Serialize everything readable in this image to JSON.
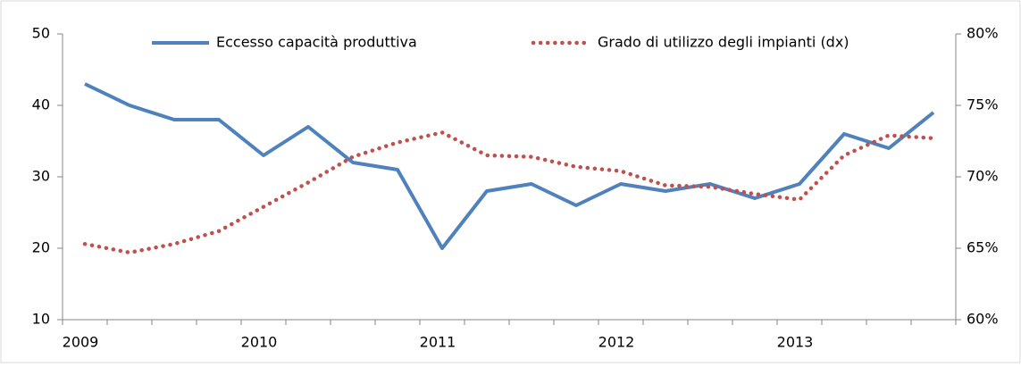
{
  "chart_data": {
    "type": "line",
    "categories": [
      "2009",
      null,
      null,
      null,
      "2010",
      null,
      null,
      null,
      "2011",
      null,
      null,
      null,
      "2012",
      null,
      null,
      null,
      "2013",
      null,
      null,
      null
    ],
    "series": [
      {
        "name": "Eccesso capacità produttiva",
        "color": "#4f81bd",
        "style": "solid",
        "values": [
          43,
          40,
          38,
          38,
          33,
          37,
          32,
          31,
          20,
          28,
          29,
          26,
          29,
          28,
          29,
          27,
          29,
          36,
          34,
          39
        ]
      },
      {
        "name": "Grado di utilizzo degli impianti (dx)",
        "color": "#c0504d",
        "style": "dotted",
        "axis": "y2",
        "values": [
          65.3,
          64.7,
          65.3,
          66.2,
          67.9,
          69.6,
          71.4,
          72.4,
          73.1,
          71.5,
          71.4,
          70.7,
          70.4,
          69.4,
          69.3,
          68.8,
          68.4,
          71.5,
          72.9,
          72.7
        ]
      }
    ],
    "ylim": [
      10,
      50
    ],
    "yticks": [
      10,
      20,
      30,
      40,
      50
    ],
    "y2lim": [
      60,
      80
    ],
    "y2ticks": [
      {
        "value": 60,
        "label": "60%"
      },
      {
        "value": 65,
        "label": "65%"
      },
      {
        "value": 70,
        "label": "70%"
      },
      {
        "value": 75,
        "label": "75%"
      },
      {
        "value": 80,
        "label": "80%"
      }
    ],
    "legend": "top"
  }
}
